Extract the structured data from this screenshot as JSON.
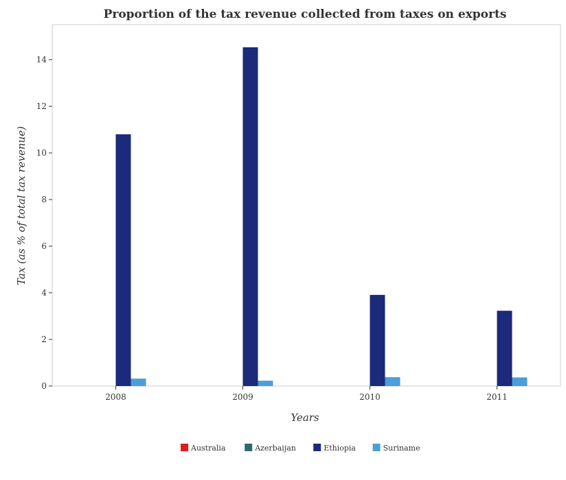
{
  "chart_data": {
    "type": "bar",
    "title": "Proportion of the tax revenue collected from taxes on exports",
    "xlabel": "Years",
    "ylabel": "Tax (as % of total tax revenue)",
    "categories": [
      "2008",
      "2009",
      "2010",
      "2011"
    ],
    "ylim": [
      0,
      15.5
    ],
    "yticks": [
      0,
      2,
      4,
      6,
      8,
      10,
      12,
      14
    ],
    "series": [
      {
        "name": "Australia",
        "color": "#e41a1c",
        "values": [
          0.0,
          0.0,
          0.0,
          0.0
        ]
      },
      {
        "name": "Azerbaijan",
        "color": "#2c6a6e",
        "values": [
          0.0,
          0.0,
          0.0,
          0.0
        ]
      },
      {
        "name": "Ethiopia",
        "color": "#1b2a7a",
        "values": [
          10.8,
          14.53,
          3.91,
          3.23
        ]
      },
      {
        "name": "Suriname",
        "color": "#4a9fd8",
        "values": [
          0.32,
          0.23,
          0.38,
          0.37
        ]
      }
    ],
    "legend_position": "bottom",
    "grid": false
  }
}
